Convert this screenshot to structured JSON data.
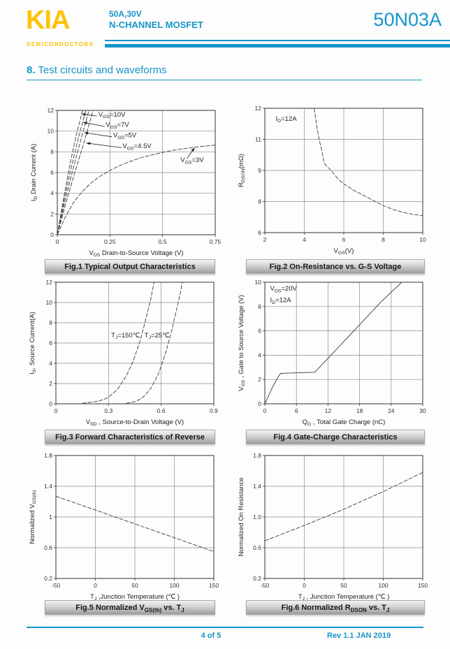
{
  "header": {
    "logo_text": "KIA",
    "logo_subtext": "SEMICONDUCTORS",
    "subtitle_line1": "50A,30V",
    "subtitle_line2": "N-CHANNEL MOSFET",
    "part_number": "50N03A"
  },
  "section_heading": {
    "number": "8.",
    "text": " Test circuits and waveforms"
  },
  "footer": {
    "page_info": "4 of 5",
    "revision": "Rev 1.1 JAN 2019"
  },
  "colors": {
    "accent_teal": "#1795c9",
    "logo_yellow": "#fdc307",
    "curve_color": "#3a3a3a",
    "grid_color": "#8a8a8a",
    "caption_gradient_top": "#f3f3f3",
    "caption_gradient_bottom": "#9d9d9d"
  },
  "chart_data": [
    {
      "id": "fig1",
      "type": "line",
      "caption": "Fig.1 Typical Output Characteristics",
      "xlabel": "V_{DS}  Drain-to-Source Voltage (V)",
      "ylabel": "I_{D}  Drain Current (A)",
      "xlim": [
        0,
        0.75
      ],
      "ylim": [
        0,
        12
      ],
      "xticks": {
        "values": [
          0,
          0.25,
          0.5,
          0.75
        ],
        "labels": [
          "0",
          "0.25",
          "0.5",
          "0.75"
        ]
      },
      "yticks": {
        "values": [
          0,
          2,
          4,
          6,
          8,
          10,
          12
        ],
        "labels": [
          "0",
          "2",
          "4",
          "6",
          "8",
          "10",
          "12"
        ]
      },
      "series": [
        {
          "name": "V_{GS}=10V",
          "dash": true,
          "points": [
            [
              0,
              0
            ],
            [
              0.03,
              3.5
            ],
            [
              0.06,
              6.8
            ],
            [
              0.09,
              9.6
            ],
            [
              0.12,
              12
            ]
          ]
        },
        {
          "name": "V_{GS}=7V",
          "dash": true,
          "points": [
            [
              0,
              0
            ],
            [
              0.033,
              3.4
            ],
            [
              0.066,
              6.5
            ],
            [
              0.1,
              9.3
            ],
            [
              0.135,
              12
            ]
          ]
        },
        {
          "name": "V_{GS}=5V",
          "dash": true,
          "points": [
            [
              0,
              0
            ],
            [
              0.036,
              3.2
            ],
            [
              0.073,
              6.2
            ],
            [
              0.11,
              9.0
            ],
            [
              0.15,
              12
            ]
          ]
        },
        {
          "name": "V_{GS}=4.5V",
          "dash": true,
          "points": [
            [
              0,
              0
            ],
            [
              0.04,
              3.0
            ],
            [
              0.08,
              5.8
            ],
            [
              0.125,
              8.8
            ],
            [
              0.17,
              12
            ]
          ]
        },
        {
          "name": "V_{GS}=3V",
          "dash": true,
          "points": [
            [
              0,
              0
            ],
            [
              0.04,
              1.8
            ],
            [
              0.08,
              3.2
            ],
            [
              0.12,
              4.2
            ],
            [
              0.16,
              5.0
            ],
            [
              0.2,
              5.6
            ],
            [
              0.25,
              6.2
            ],
            [
              0.3,
              6.7
            ],
            [
              0.35,
              7.1
            ],
            [
              0.4,
              7.45
            ],
            [
              0.45,
              7.7
            ],
            [
              0.5,
              7.95
            ],
            [
              0.55,
              8.15
            ],
            [
              0.6,
              8.3
            ],
            [
              0.65,
              8.45
            ],
            [
              0.7,
              8.55
            ],
            [
              0.75,
              8.65
            ]
          ]
        }
      ],
      "annotations": [
        {
          "text": "V_{GS}=10V",
          "x": 0.195,
          "y": 11.4,
          "anchor": "start"
        },
        {
          "text": "V_{GS}=7V",
          "x": 0.23,
          "y": 10.4,
          "anchor": "start"
        },
        {
          "text": "V_{GS}=5V",
          "x": 0.265,
          "y": 9.4,
          "anchor": "start"
        },
        {
          "text": "V_{GS}=4.5V",
          "x": 0.31,
          "y": 8.35,
          "anchor": "start"
        },
        {
          "text": "V_{GS}=3V",
          "x": 0.585,
          "y": 7.0,
          "anchor": "start"
        }
      ],
      "arrows": [
        {
          "from": [
            0.188,
            11.45
          ],
          "to": [
            0.116,
            11.65
          ]
        },
        {
          "from": [
            0.225,
            10.45
          ],
          "to": [
            0.123,
            10.85
          ]
        },
        {
          "from": [
            0.26,
            9.45
          ],
          "to": [
            0.128,
            9.85
          ]
        },
        {
          "from": [
            0.305,
            8.4
          ],
          "to": [
            0.138,
            8.85
          ]
        },
        {
          "from": [
            0.615,
            7.35
          ],
          "to": [
            0.652,
            8.4
          ]
        }
      ]
    },
    {
      "id": "fig2",
      "type": "line",
      "caption": "Fig.2 On-Resistance vs. G-S Voltage",
      "xlabel": "V_{GS}(V)",
      "ylabel": "R_{DSON}(mΩ)",
      "xlim": [
        2,
        10
      ],
      "ylim": [
        6,
        12
      ],
      "xticks": {
        "values": [
          2,
          4,
          6,
          8,
          10
        ],
        "labels": [
          "2",
          "4",
          "6",
          "8",
          "10"
        ]
      },
      "yticks": {
        "values": [
          6,
          7.5,
          9,
          10.5,
          12
        ],
        "labels": [
          "6",
          "8",
          "9",
          "11",
          "12"
        ]
      },
      "series": [
        {
          "name": "R_{DSON}",
          "dash": true,
          "points": [
            [
              4.5,
              12
            ],
            [
              4.62,
              11.2
            ],
            [
              4.75,
              10.5
            ],
            [
              4.9,
              9.9
            ],
            [
              5.0,
              9.35
            ],
            [
              5.2,
              9.15
            ],
            [
              5.45,
              8.9
            ],
            [
              5.7,
              8.6
            ],
            [
              6.0,
              8.35
            ],
            [
              6.5,
              8.05
            ],
            [
              7.0,
              7.8
            ],
            [
              7.5,
              7.55
            ],
            [
              8.0,
              7.3
            ],
            [
              8.5,
              7.12
            ],
            [
              9.0,
              6.98
            ],
            [
              9.5,
              6.88
            ],
            [
              10,
              6.82
            ]
          ]
        }
      ],
      "annotations": [
        {
          "text": "I_{D}=12A",
          "x": 2.55,
          "y": 11.4,
          "anchor": "start"
        }
      ],
      "arrows": []
    },
    {
      "id": "fig3",
      "type": "line",
      "caption": "Fig.3 Forward Characteristics of Reverse",
      "xlabel": "V_{SD} , Source-to-Drain Voltage (V)",
      "ylabel": "I_{S}, Source Current(A)",
      "xlim": [
        0,
        0.9
      ],
      "ylim": [
        0,
        12
      ],
      "xticks": {
        "values": [
          0,
          0.3,
          0.6,
          0.9
        ],
        "labels": [
          "0",
          "0.3",
          "0.6",
          "0.9"
        ]
      },
      "yticks": {
        "values": [
          0,
          2,
          4,
          6,
          8,
          10,
          12
        ],
        "labels": [
          "0",
          "2",
          "4",
          "6",
          "8",
          "10",
          "12"
        ]
      },
      "series": [
        {
          "name": "T_{J}=150℃",
          "dash": true,
          "points": [
            [
              0.15,
              0.05
            ],
            [
              0.22,
              0.2
            ],
            [
              0.27,
              0.4
            ],
            [
              0.3,
              0.65
            ],
            [
              0.35,
              1.4
            ],
            [
              0.4,
              2.7
            ],
            [
              0.44,
              4.2
            ],
            [
              0.48,
              6.2
            ],
            [
              0.51,
              8.2
            ],
            [
              0.54,
              10.3
            ],
            [
              0.56,
              12
            ]
          ]
        },
        {
          "name": "T_{J}=25℃",
          "dash": true,
          "points": [
            [
              0.4,
              0.05
            ],
            [
              0.46,
              0.25
            ],
            [
              0.5,
              0.7
            ],
            [
              0.54,
              1.5
            ],
            [
              0.58,
              2.8
            ],
            [
              0.6,
              3.7
            ],
            [
              0.63,
              5.3
            ],
            [
              0.66,
              7.2
            ],
            [
              0.69,
              9.5
            ],
            [
              0.71,
              11
            ],
            [
              0.72,
              12
            ]
          ]
        }
      ],
      "annotations": [
        {
          "text": "T_{J}=150℃",
          "x": 0.315,
          "y": 6.55,
          "anchor": "start"
        },
        {
          "text": "T_{J}=25℃",
          "x": 0.505,
          "y": 6.55,
          "anchor": "start"
        }
      ],
      "arrows": []
    },
    {
      "id": "fig4",
      "type": "line",
      "caption": "Fig.4 Gate-Charge Characteristics",
      "xlabel": "Q_{G} , Total Gate Charge (nC)",
      "ylabel": "V_{GS} , Gate to Source Voltage (V)",
      "xlim": [
        0,
        30
      ],
      "ylim": [
        0,
        10
      ],
      "xticks": {
        "values": [
          0,
          6,
          12,
          18,
          24,
          30
        ],
        "labels": [
          "0",
          "6",
          "12",
          "18",
          "24",
          "30"
        ]
      },
      "yticks": {
        "values": [
          0,
          2,
          4,
          6,
          8,
          10
        ],
        "labels": [
          "0",
          "2",
          "4",
          "6",
          "8",
          "10"
        ]
      },
      "series": [
        {
          "name": "V_{GS}",
          "dash": false,
          "points": [
            [
              0,
              0
            ],
            [
              1.5,
              1.4
            ],
            [
              2.5,
              2.2
            ],
            [
              3,
              2.5
            ],
            [
              4,
              2.52
            ],
            [
              9.5,
              2.6
            ],
            [
              13,
              4.2
            ],
            [
              18,
              6.5
            ],
            [
              22,
              8.35
            ],
            [
              26,
              10
            ]
          ]
        }
      ],
      "annotations": [
        {
          "text": "V_{DS}=20V",
          "x": 1.0,
          "y": 9.3,
          "anchor": "start"
        },
        {
          "text": "I_{D}=12A",
          "x": 1.0,
          "y": 8.35,
          "anchor": "start"
        }
      ],
      "arrows": []
    },
    {
      "id": "fig5",
      "type": "line",
      "caption": "Fig.5 Normalized V_{GS(th)} vs. T_{J}",
      "xlabel": "T_{J} ,Junction Temperature (℃ )",
      "ylabel": "Normalized V_{GS(th)}",
      "xlim": [
        -50,
        150
      ],
      "ylim": [
        0.2,
        1.8
      ],
      "xticks": {
        "values": [
          -50,
          0,
          50,
          100,
          150
        ],
        "labels": [
          "-50",
          "0",
          "50",
          "100",
          "150"
        ]
      },
      "yticks": {
        "values": [
          0.2,
          0.6,
          1.0,
          1.4,
          1.8
        ],
        "labels": [
          "0.2",
          "0.6",
          "1",
          "1.4",
          "1.8"
        ]
      },
      "series": [
        {
          "name": "Normalized V_{GS(th)}",
          "dash": true,
          "points": [
            [
              -50,
              1.27
            ],
            [
              0,
              1.09
            ],
            [
              50,
              0.91
            ],
            [
              100,
              0.73
            ],
            [
              150,
              0.55
            ]
          ]
        }
      ],
      "annotations": [],
      "arrows": []
    },
    {
      "id": "fig6",
      "type": "line",
      "caption": "Fig.6 Normalized R_{DSON} vs. T_{J}",
      "xlabel": "T_{J} , Junction Temperature (℃ )",
      "ylabel": "Normalized On Resistance",
      "xlim": [
        -50,
        150
      ],
      "ylim": [
        0.2,
        1.8
      ],
      "xticks": {
        "values": [
          -50,
          0,
          50,
          100,
          150
        ],
        "labels": [
          "-50",
          "0",
          "50",
          "100",
          "150"
        ]
      },
      "yticks": {
        "values": [
          0.2,
          0.6,
          1.0,
          1.4,
          1.8
        ],
        "labels": [
          "0.2",
          "0.6",
          "1.0",
          "1.4",
          "1.8"
        ]
      },
      "series": [
        {
          "name": "Normalized R_{DSON}",
          "dash": true,
          "points": [
            [
              -50,
              0.69
            ],
            [
              0,
              0.89
            ],
            [
              50,
              1.1
            ],
            [
              100,
              1.33
            ],
            [
              150,
              1.58
            ]
          ]
        }
      ],
      "annotations": [],
      "arrows": []
    }
  ]
}
